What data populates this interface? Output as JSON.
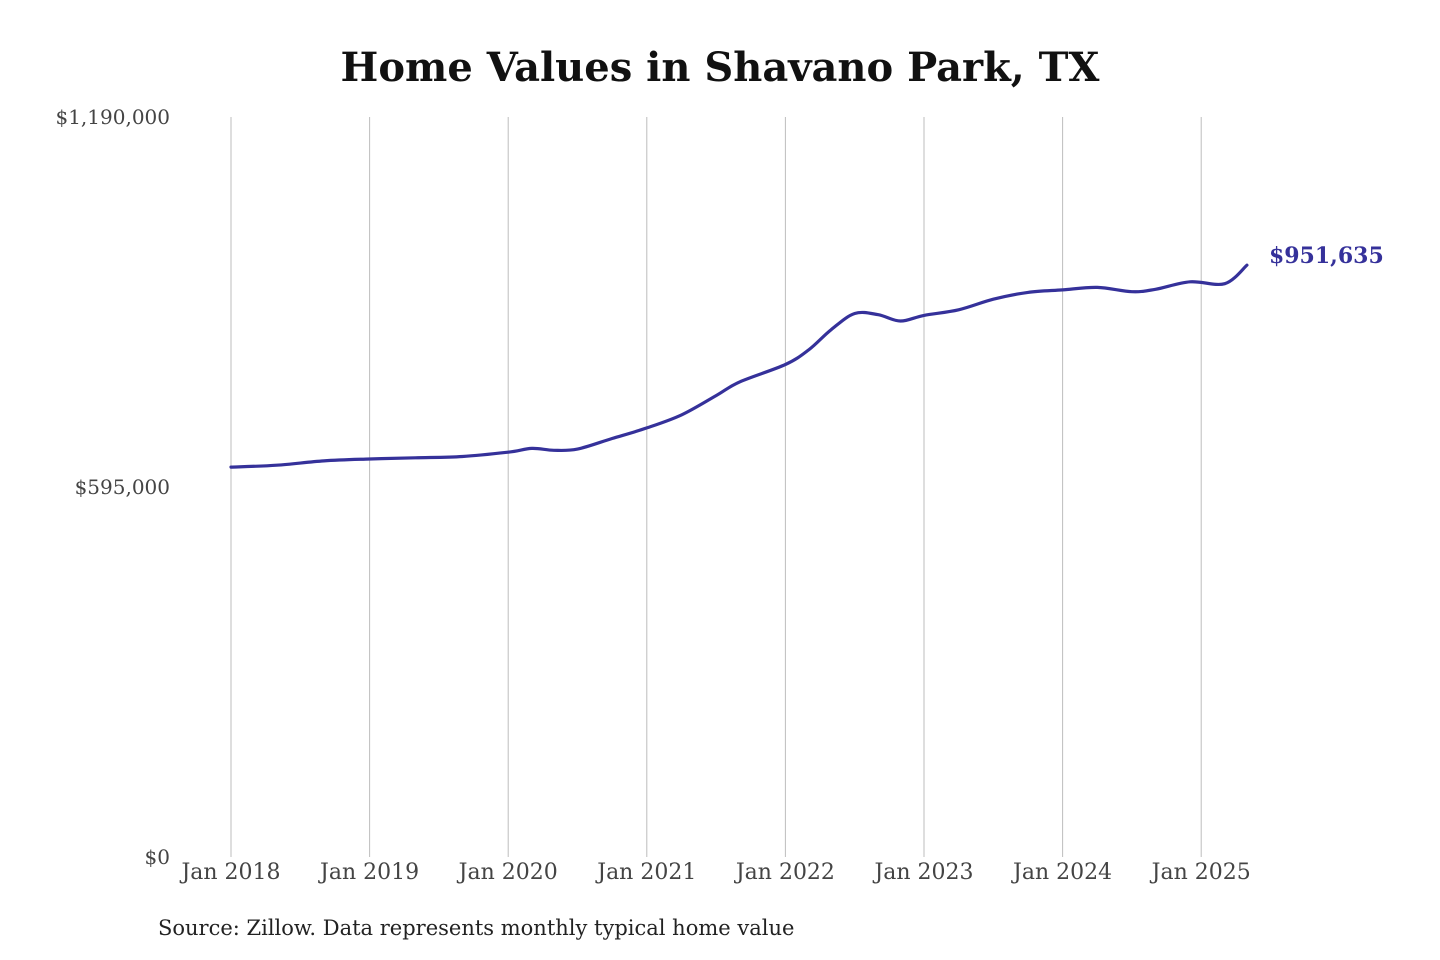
{
  "chart_data": {
    "type": "line",
    "title": "Home Values in Shavano Park, TX",
    "xlabel": "",
    "ylabel": "",
    "ylim": [
      0,
      1190000
    ],
    "y_ticks": [
      {
        "value": 0,
        "label": "$0"
      },
      {
        "value": 595000,
        "label": "$595,000"
      },
      {
        "value": 1190000,
        "label": "$1,190,000"
      }
    ],
    "x_ticks": [
      {
        "value": 2018.0,
        "label": "Jan 2018"
      },
      {
        "value": 2019.0,
        "label": "Jan 2019"
      },
      {
        "value": 2020.0,
        "label": "Jan 2020"
      },
      {
        "value": 2021.0,
        "label": "Jan 2021"
      },
      {
        "value": 2022.0,
        "label": "Jan 2022"
      },
      {
        "value": 2023.0,
        "label": "Jan 2023"
      },
      {
        "value": 2024.0,
        "label": "Jan 2024"
      },
      {
        "value": 2025.0,
        "label": "Jan 2025"
      }
    ],
    "grid": "vertical",
    "end_label": "$951,635",
    "series": [
      {
        "color": "#35319a",
        "points": [
          [
            2018.0,
            627000
          ],
          [
            2018.33,
            630000
          ],
          [
            2018.67,
            637000
          ],
          [
            2019.0,
            640000
          ],
          [
            2019.33,
            642000
          ],
          [
            2019.67,
            644000
          ],
          [
            2020.0,
            651000
          ],
          [
            2020.17,
            657000
          ],
          [
            2020.33,
            654000
          ],
          [
            2020.5,
            656000
          ],
          [
            2020.75,
            673000
          ],
          [
            2021.0,
            690000
          ],
          [
            2021.25,
            711000
          ],
          [
            2021.5,
            742000
          ],
          [
            2021.67,
            764000
          ],
          [
            2022.0,
            792000
          ],
          [
            2022.17,
            816000
          ],
          [
            2022.33,
            848000
          ],
          [
            2022.5,
            874000
          ],
          [
            2022.67,
            872000
          ],
          [
            2022.83,
            862000
          ],
          [
            2023.0,
            871000
          ],
          [
            2023.25,
            880000
          ],
          [
            2023.5,
            897000
          ],
          [
            2023.75,
            908000
          ],
          [
            2024.0,
            912000
          ],
          [
            2024.25,
            916000
          ],
          [
            2024.5,
            909000
          ],
          [
            2024.67,
            913000
          ],
          [
            2024.92,
            925000
          ],
          [
            2025.17,
            922000
          ],
          [
            2025.33,
            951635
          ]
        ]
      }
    ]
  },
  "source_note": "Source: Zillow. Data represents monthly typical home value"
}
